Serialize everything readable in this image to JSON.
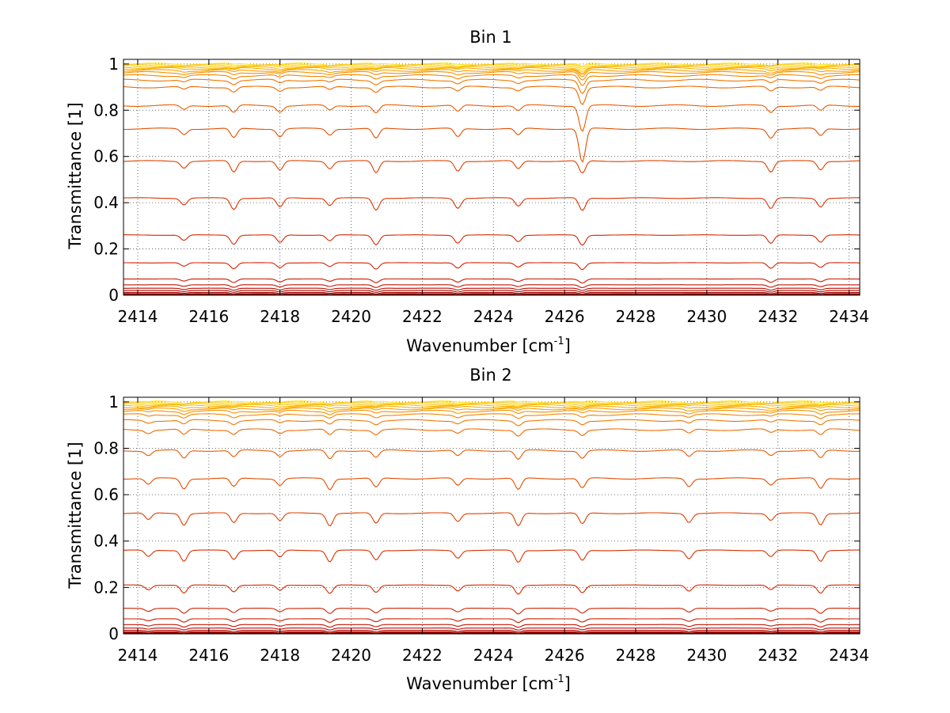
{
  "chart_data": [
    {
      "type": "line",
      "title": "Bin 1",
      "xlabel": "Wavenumber [cm",
      "xlabel_sup": "-1",
      "xlabel_end": "]",
      "ylabel": "Transmittance [1]",
      "xlim": [
        2413.6,
        2434.3
      ],
      "ylim": [
        0,
        1.02
      ],
      "xticks": [
        2414,
        2416,
        2418,
        2420,
        2422,
        2424,
        2426,
        2428,
        2430,
        2432,
        2434
      ],
      "yticks": [
        0,
        0.2,
        0.4,
        0.6,
        0.8,
        1
      ],
      "grid": true,
      "absorption_lines": [
        2415.3,
        2416.7,
        2418.0,
        2419.4,
        2420.7,
        2423.0,
        2424.7,
        2426.5,
        2431.8,
        2433.2
      ],
      "series_levels": [
        1.0,
        0.997,
        0.994,
        0.99,
        0.985,
        0.98,
        0.972,
        0.963,
        0.95,
        0.93,
        0.9,
        0.82,
        0.72,
        0.58,
        0.42,
        0.26,
        0.14,
        0.07,
        0.045,
        0.03,
        0.02,
        0.012,
        0.007,
        0.003,
        0.0
      ]
    },
    {
      "type": "line",
      "title": "Bin 2",
      "xlabel": "Wavenumber [cm",
      "xlabel_sup": "-1",
      "xlabel_end": "]",
      "ylabel": "Transmittance [1]",
      "xlim": [
        2413.6,
        2434.3
      ],
      "ylim": [
        0,
        1.02
      ],
      "xticks": [
        2414,
        2416,
        2418,
        2420,
        2422,
        2424,
        2426,
        2428,
        2430,
        2432,
        2434
      ],
      "yticks": [
        0,
        0.2,
        0.4,
        0.6,
        0.8,
        1
      ],
      "grid": true,
      "absorption_lines": [
        2414.3,
        2415.3,
        2416.7,
        2418.0,
        2419.4,
        2420.7,
        2423.0,
        2424.7,
        2426.5,
        2429.5,
        2431.8,
        2433.2
      ],
      "series_levels": [
        1.0,
        0.997,
        0.994,
        0.99,
        0.985,
        0.978,
        0.97,
        0.96,
        0.945,
        0.92,
        0.88,
        0.79,
        0.67,
        0.52,
        0.36,
        0.21,
        0.11,
        0.065,
        0.04,
        0.025,
        0.015,
        0.009,
        0.005,
        0.002,
        0.0
      ]
    }
  ]
}
